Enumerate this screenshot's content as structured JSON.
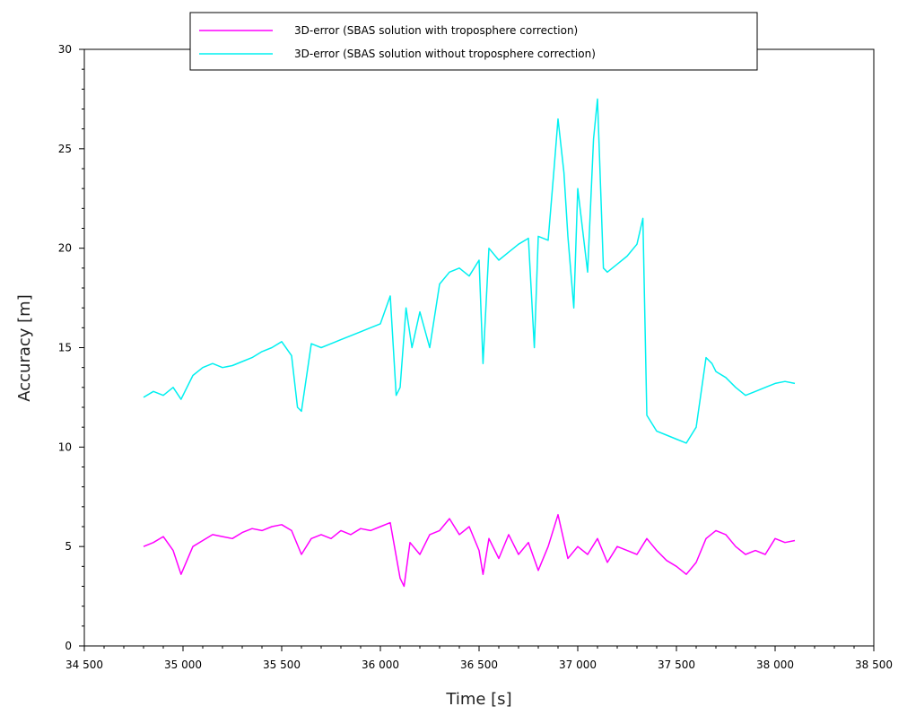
{
  "chart_data": {
    "type": "line",
    "title": "",
    "xlabel": "Time [s]",
    "ylabel": "Accuracy [m]",
    "xlim": [
      34500,
      38500
    ],
    "ylim": [
      0,
      30
    ],
    "x_ticks": [
      34500,
      35000,
      35500,
      36000,
      36500,
      37000,
      37500,
      38000,
      38500
    ],
    "x_tick_labels": [
      "34 500",
      "35 000",
      "35 500",
      "36 000",
      "36 500",
      "37 000",
      "37 500",
      "38 000",
      "38 500"
    ],
    "y_ticks": [
      0,
      5,
      10,
      15,
      20,
      25,
      30
    ],
    "y_tick_labels": [
      "0",
      "5",
      "10",
      "15",
      "20",
      "25",
      "30"
    ],
    "grid": false,
    "legend_position": "top",
    "series": [
      {
        "name": "3D-error (SBAS solution with troposphere correction)",
        "color": "#ff00ff",
        "x": [
          34800,
          34850,
          34900,
          34950,
          34990,
          35050,
          35100,
          35150,
          35200,
          35250,
          35300,
          35350,
          35400,
          35450,
          35500,
          35550,
          35600,
          35650,
          35700,
          35750,
          35800,
          35850,
          35900,
          35950,
          36000,
          36050,
          36100,
          36120,
          36150,
          36200,
          36250,
          36300,
          36350,
          36400,
          36450,
          36500,
          36520,
          36550,
          36600,
          36650,
          36700,
          36750,
          36800,
          36850,
          36900,
          36950,
          37000,
          37050,
          37100,
          37150,
          37200,
          37250,
          37300,
          37350,
          37400,
          37450,
          37500,
          37550,
          37600,
          37650,
          37700,
          37750,
          37800,
          37850,
          37900,
          37950,
          38000,
          38050,
          38100
        ],
        "y": [
          5.0,
          5.2,
          5.5,
          4.8,
          3.6,
          5.0,
          5.3,
          5.6,
          5.5,
          5.4,
          5.7,
          5.9,
          5.8,
          6.0,
          6.1,
          5.8,
          4.6,
          5.4,
          5.6,
          5.4,
          5.8,
          5.6,
          5.9,
          5.8,
          6.0,
          6.2,
          3.4,
          3.0,
          5.2,
          4.6,
          5.6,
          5.8,
          6.4,
          5.6,
          6.0,
          4.8,
          3.6,
          5.4,
          4.4,
          5.6,
          4.6,
          5.2,
          3.8,
          5.0,
          6.6,
          4.4,
          5.0,
          4.6,
          5.4,
          4.2,
          5.0,
          4.8,
          4.6,
          5.4,
          4.8,
          4.3,
          4.0,
          3.6,
          4.2,
          5.4,
          5.8,
          5.6,
          5.0,
          4.6,
          4.8,
          4.6,
          5.4,
          5.2,
          5.3
        ]
      },
      {
        "name": "3D-error (SBAS solution without troposphere correction)",
        "color": "#00f0f0",
        "x": [
          34800,
          34850,
          34900,
          34950,
          34990,
          35050,
          35100,
          35150,
          35200,
          35250,
          35300,
          35350,
          35400,
          35450,
          35500,
          35550,
          35580,
          35600,
          35650,
          35700,
          35750,
          35800,
          35850,
          35900,
          35950,
          36000,
          36050,
          36080,
          36100,
          36130,
          36160,
          36200,
          36250,
          36300,
          36350,
          36400,
          36450,
          36500,
          36520,
          36550,
          36600,
          36650,
          36700,
          36750,
          36780,
          36800,
          36850,
          36880,
          36900,
          36930,
          36950,
          36980,
          37000,
          37050,
          37080,
          37100,
          37130,
          37150,
          37200,
          37250,
          37300,
          37330,
          37350,
          37400,
          37450,
          37500,
          37550,
          37600,
          37650,
          37680,
          37700,
          37750,
          37800,
          37850,
          37900,
          37950,
          38000,
          38050,
          38100
        ],
        "y": [
          12.5,
          12.8,
          12.6,
          13.0,
          12.4,
          13.6,
          14.0,
          14.2,
          14.0,
          14.1,
          14.3,
          14.5,
          14.8,
          15.0,
          15.3,
          14.6,
          12.0,
          11.8,
          15.2,
          15.0,
          15.2,
          15.4,
          15.6,
          15.8,
          16.0,
          16.2,
          17.6,
          12.6,
          13.0,
          17.0,
          15.0,
          16.8,
          15.0,
          18.2,
          18.8,
          19.0,
          18.6,
          19.4,
          14.2,
          20.0,
          19.4,
          19.8,
          20.2,
          20.5,
          15.0,
          20.6,
          20.4,
          24.0,
          26.5,
          23.8,
          20.6,
          17.0,
          23.0,
          18.8,
          25.5,
          27.5,
          19.0,
          18.8,
          19.2,
          19.6,
          20.2,
          21.5,
          11.6,
          10.8,
          10.6,
          10.4,
          10.2,
          11.0,
          14.5,
          14.2,
          13.8,
          13.5,
          13.0,
          12.6,
          12.8,
          13.0,
          13.2,
          13.3,
          13.2
        ]
      }
    ]
  }
}
